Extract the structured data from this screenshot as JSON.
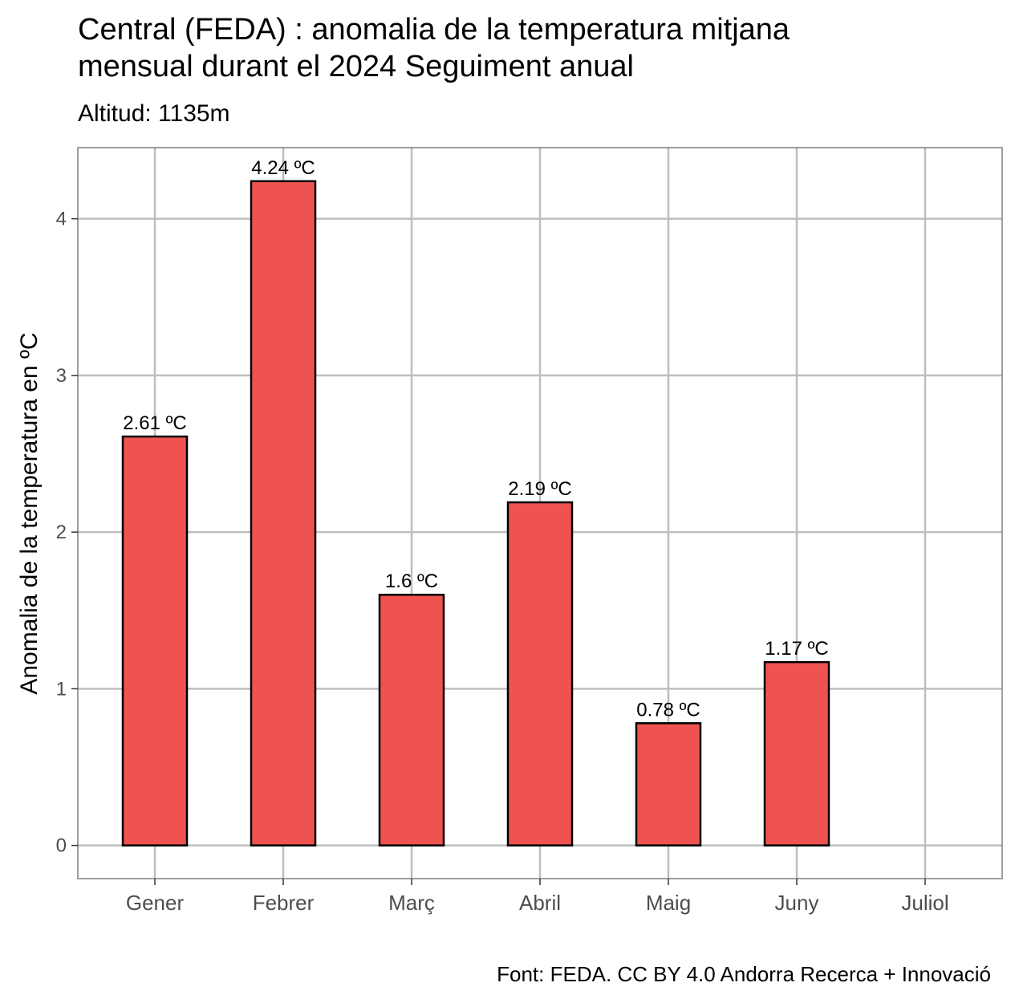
{
  "chart_data": {
    "type": "bar",
    "title_line1": "Central (FEDA) : anomalia de la temperatura mitjana",
    "title_line2": "mensual durant el 2024  Seguiment anual",
    "subtitle": "Altitud: 1135m",
    "ylabel": "Anomalia de la temperatura en ºC",
    "xlabel": "",
    "caption": "Font: FEDA. CC BY 4.0 Andorra Recerca + Innovació",
    "categories": [
      "Gener",
      "Febrer",
      "Març",
      "Abril",
      "Maig",
      "Juny",
      "Juliol"
    ],
    "values": [
      2.61,
      4.24,
      1.6,
      2.19,
      0.78,
      1.17,
      null
    ],
    "data_labels": [
      "2.61 ºC",
      "4.24 ºC",
      "1.6 ºC",
      "2.19 ºC",
      "0.78 ºC",
      "1.17 ºC",
      null
    ],
    "yticks": [
      0,
      1,
      2,
      3,
      4
    ],
    "ylim": [
      -0.212,
      4.454
    ],
    "grid": true,
    "bar_color": "#EF5350",
    "bar_border_color": "#000000",
    "grid_color": "#BEBEBE",
    "panel_border_color": "#7F7F7F"
  }
}
